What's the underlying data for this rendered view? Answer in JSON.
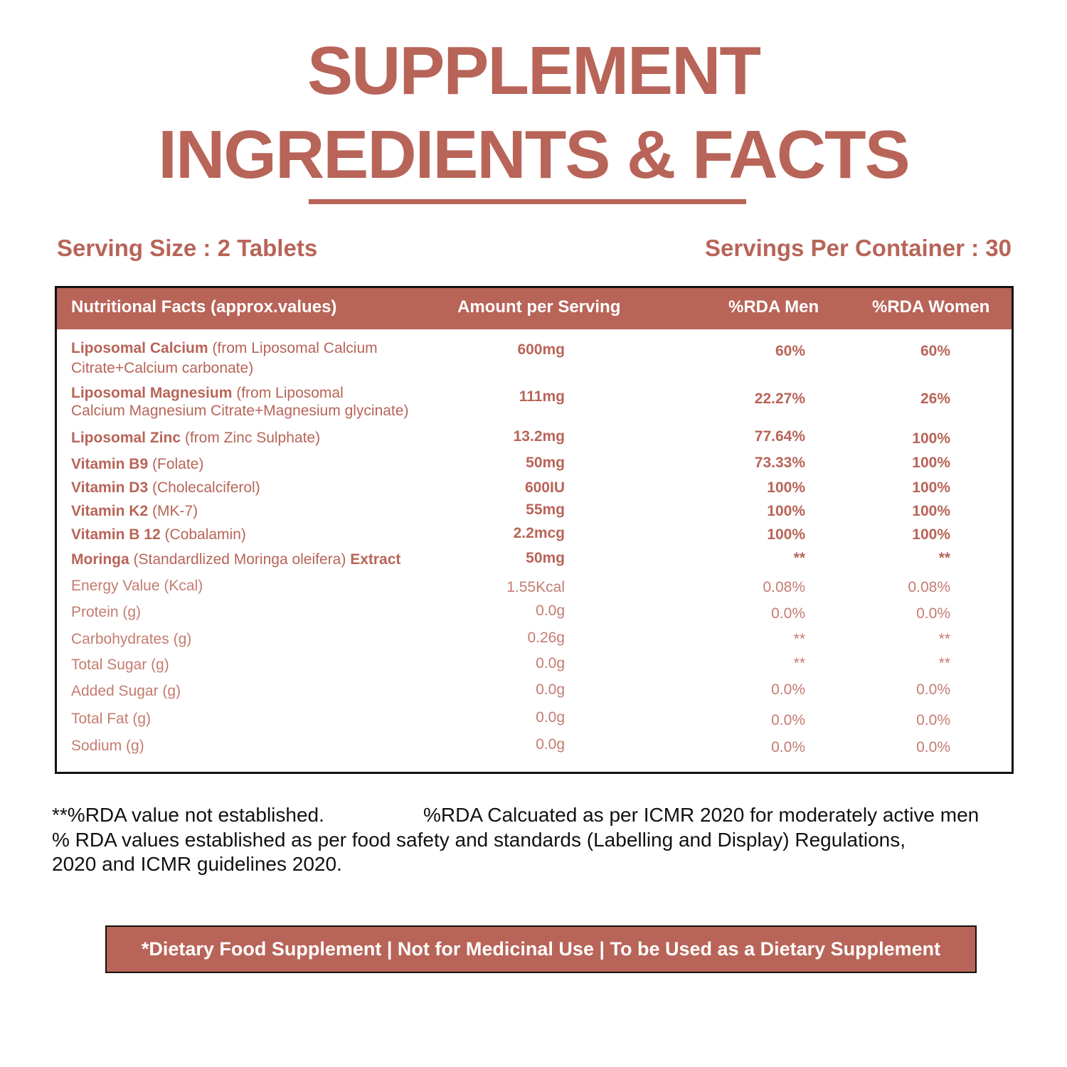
{
  "title": {
    "line1": "SUPPLEMENT",
    "line2": "INGREDIENTS & FACTS"
  },
  "serving_size": "Serving Size : 2 Tablets",
  "servings_per_container": "Servings Per Container : 30",
  "table": {
    "headers": [
      "Nutritional Facts (approx.values)",
      "Amount per Serving",
      "%RDA Men",
      "%RDA Women"
    ],
    "rows": [
      {
        "name": "Liposomal Calcium",
        "detail": "(from Liposomal Calcium",
        "detail2": "Citrate+Calcium carbonate)",
        "amount": "600mg",
        "men": "60%",
        "women": "60%"
      },
      {
        "name": "Liposomal Magnesium",
        "detail": "(from Liposomal",
        "detail2": "Calcium Magnesium Citrate+Magnesium glycinate)",
        "amount": "111mg",
        "men": "22.27%",
        "women": "26%"
      },
      {
        "name": "Liposomal Zinc",
        "detail": "(from Zinc Sulphate)",
        "amount": "13.2mg",
        "men": "77.64%",
        "women": "100%"
      },
      {
        "name": "Vitamin B9",
        "detail": "(Folate)",
        "amount": "50mg",
        "men": "73.33%",
        "women": "100%"
      },
      {
        "name": "Vitamin D3",
        "detail": "(Cholecalciferol)",
        "amount": "600IU",
        "men": "100%",
        "women": "100%"
      },
      {
        "name": "Vitamin K2",
        "detail": "(MK-7)",
        "amount": "55mg",
        "men": "100%",
        "women": "100%"
      },
      {
        "name": "Vitamin B 12",
        "detail": "(Cobalamin)",
        "amount": "2.2mcg",
        "men": "100%",
        "women": "100%"
      },
      {
        "name": "Moringa",
        "detail": "(Standardlized Moringa oleifera)",
        "suffix": "Extract",
        "amount": "50mg",
        "men": "**",
        "women": "**"
      },
      {
        "name": "Energy Value (Kcal)",
        "amount": "1.55Kcal",
        "men": "0.08%",
        "women": "0.08%"
      },
      {
        "name": "Protein (g)",
        "amount": "0.0g",
        "men": "0.0%",
        "women": "0.0%"
      },
      {
        "name": "Carbohydrates (g)",
        "amount": "0.26g",
        "men": "**",
        "women": "**"
      },
      {
        "name": "Total Sugar (g)",
        "amount": "0.0g",
        "men": "**",
        "women": "**"
      },
      {
        "name": "Added Sugar (g)",
        "amount": "0.0g",
        "men": "0.0%",
        "women": "0.0%"
      },
      {
        "name": "Total Fat (g)",
        "amount": "0.0g",
        "men": "0.0%",
        "women": "0.0%"
      },
      {
        "name": "Sodium (g)",
        "amount": "0.0g",
        "men": "0.0%",
        "women": "0.0%"
      }
    ]
  },
  "notes": {
    "a": "**%RDA value not established.",
    "b": "%RDA Calcuated as per ICMR 2020 for moderately active men",
    "c": "% RDA values established as per food safety and standards (Labelling and Display) Regulations,",
    "d": "2020 and ICMR guidelines 2020."
  },
  "banner": "*Dietary Food Supplement | Not for Medicinal Use | To be Used as a Dietary Supplement",
  "colors": {
    "accent": "#b86458",
    "text_dark": "#111111",
    "background": "#ffffff"
  }
}
